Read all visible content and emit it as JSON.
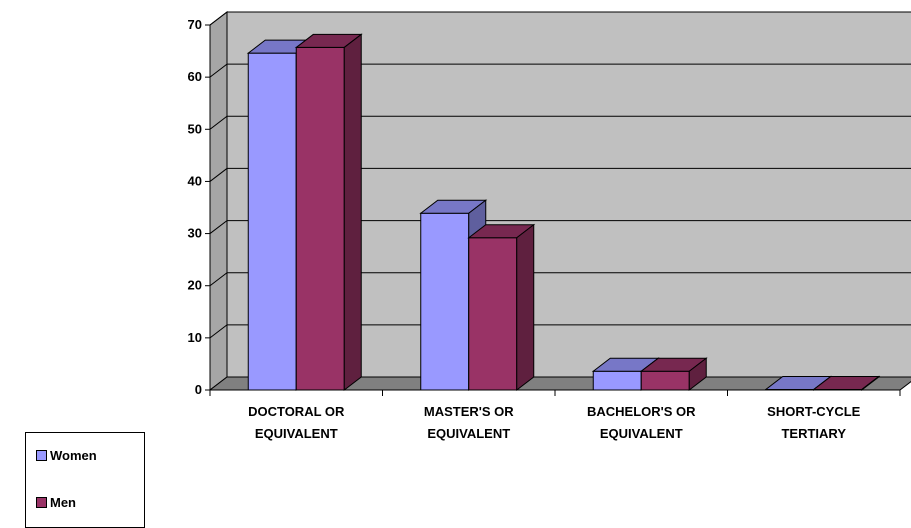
{
  "chart_data": {
    "type": "bar",
    "categories": [
      [
        "DOCTORAL OR",
        "EQUIVALENT"
      ],
      [
        "MASTER'S OR",
        "EQUIVALENT"
      ],
      [
        "BACHELOR'S OR",
        "EQUIVALENT"
      ],
      [
        "SHORT-CYCLE",
        "TERTIARY"
      ]
    ],
    "series": [
      {
        "name": "Women",
        "values": [
          64.6,
          33.9,
          3.6,
          0.1
        ],
        "color": "#9999FF"
      },
      {
        "name": "Men",
        "values": [
          65.7,
          29.2,
          3.6,
          0.1
        ],
        "color": "#993366"
      }
    ],
    "ylim": [
      0,
      70
    ],
    "yticks": [
      0,
      10,
      20,
      30,
      40,
      50,
      60,
      70
    ],
    "grid": true,
    "wall_color": "#C0C0C0",
    "legend_position": "bottom-left"
  }
}
